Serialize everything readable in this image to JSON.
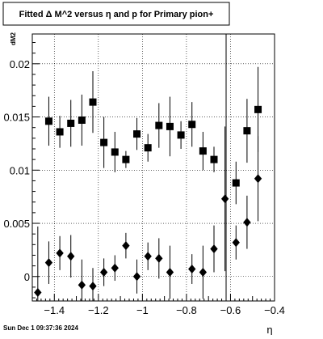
{
  "title": "Fitted Δ M^2 versus η and p for Primary pion+",
  "timestamp": "Sun Dec  1 09:37:36 2024",
  "chart_data": {
    "type": "scatter",
    "title": "Fitted Δ M^2 versus η and p for Primary pion+",
    "xlabel": "η",
    "ylabel": "dM2",
    "xlim": [
      -1.5,
      -0.4
    ],
    "ylim": [
      -0.0023,
      0.0228
    ],
    "grid": true,
    "legend": "none",
    "x_ticks": [
      -1.4,
      -1.2,
      -1.0,
      -0.8,
      -0.6,
      -0.4
    ],
    "x_tick_labels": [
      "−1.4",
      "−1.2",
      "−1",
      "−0.8",
      "−0.6",
      "−0.4"
    ],
    "y_ticks": [
      0,
      0.005,
      0.01,
      0.015,
      0.02
    ],
    "y_tick_labels": [
      "0",
      "0.005",
      "0.01",
      "0.015",
      "0.02"
    ],
    "vertical_line_x": -0.62,
    "series": [
      {
        "marker": "square",
        "x": [
          -1.425,
          -1.375,
          -1.325,
          -1.275,
          -1.225,
          -1.175,
          -1.125,
          -1.075,
          -1.025,
          -0.975,
          -0.925,
          -0.875,
          -0.825,
          -0.775,
          -0.725,
          -0.675,
          -0.625,
          -0.575,
          -0.525,
          -0.475
        ],
        "y": [
          0.0146,
          0.0136,
          0.0144,
          0.0147,
          0.0164,
          0.0126,
          0.0117,
          0.011,
          0.0134,
          0.0121,
          0.0142,
          0.0141,
          0.0133,
          0.0143,
          0.0118,
          0.011,
          null,
          0.0088,
          0.0137,
          0.0157
        ],
        "err": [
          0.0023,
          0.0015,
          0.0022,
          0.0024,
          0.0029,
          0.0024,
          0.0019,
          0.0008,
          0.0015,
          0.0013,
          0.0021,
          0.0028,
          0.0013,
          0.0021,
          0.0018,
          0.0012,
          null,
          0.002,
          0.003,
          0.004
        ]
      },
      {
        "marker": "diamond",
        "x": [
          -1.475,
          -1.425,
          -1.375,
          -1.325,
          -1.275,
          -1.225,
          -1.175,
          -1.125,
          -1.075,
          -1.025,
          -0.975,
          -0.925,
          -0.875,
          -0.775,
          -0.725,
          -0.675,
          -0.625,
          -0.575,
          -0.525,
          -0.475
        ],
        "y": [
          -0.0015,
          0.0013,
          0.0022,
          0.0019,
          -0.0008,
          -0.0009,
          0.0004,
          0.0008,
          0.0029,
          0.0,
          0.0019,
          0.0017,
          0.0004,
          0.0007,
          0.0004,
          0.0026,
          0.0073,
          0.0032,
          0.0051,
          0.0092
        ],
        "err": [
          0.0062,
          0.002,
          0.0016,
          0.002,
          0.0024,
          0.0017,
          0.0013,
          0.0012,
          0.0012,
          0.0016,
          0.0013,
          0.0019,
          0.0025,
          0.0014,
          0.0025,
          0.0022,
          0.0068,
          0.0016,
          0.0025,
          0.004
        ]
      }
    ]
  }
}
